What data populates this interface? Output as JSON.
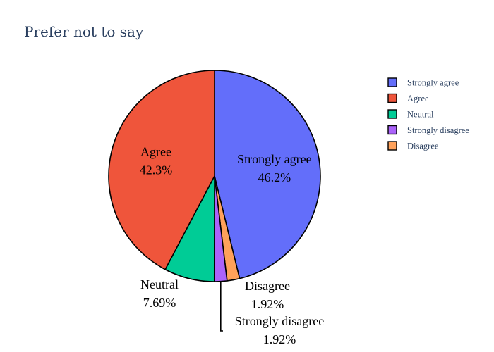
{
  "chart_data": {
    "type": "pie",
    "title": "Prefer not to say",
    "slices": [
      {
        "label": "Strongly agree",
        "value": 46.2,
        "display": "46.2%",
        "color": "#636efa"
      },
      {
        "label": "Disagree",
        "value": 1.92,
        "display": "1.92%",
        "color": "#ffa15a"
      },
      {
        "label": "Strongly disagree",
        "value": 1.92,
        "display": "1.92%",
        "color": "#ab63fa"
      },
      {
        "label": "Neutral",
        "value": 7.69,
        "display": "7.69%",
        "color": "#00cc96"
      },
      {
        "label": "Agree",
        "value": 42.3,
        "display": "42.3%",
        "color": "#ef553b"
      }
    ],
    "legend": {
      "placement": "top-right",
      "items": [
        {
          "label": "Strongly agree",
          "color": "#636efa"
        },
        {
          "label": "Agree",
          "color": "#ef553b"
        },
        {
          "label": "Neutral",
          "color": "#00cc96"
        },
        {
          "label": "Strongly disagree",
          "color": "#ab63fa"
        },
        {
          "label": "Disagree",
          "color": "#ffa15a"
        }
      ]
    }
  }
}
